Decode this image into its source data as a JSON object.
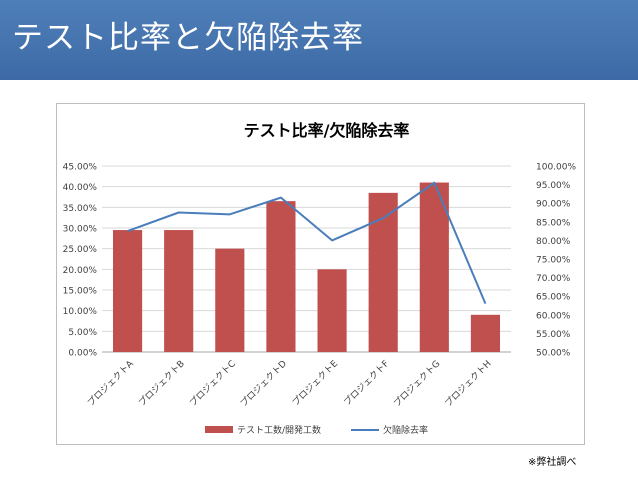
{
  "slide": {
    "title": "テスト比率と欠陥除去率",
    "footnote": "※弊社調べ"
  },
  "colors": {
    "header_bg": "#3d6aa6",
    "bar": "#c0504d",
    "line": "#4a7ebb",
    "grid": "#d9d9d9"
  },
  "chart_data": {
    "type": "bar",
    "title": "テスト比率/欠陥除去率",
    "categories": [
      "プロジェクトA",
      "プロジェクトB",
      "プロジェクトC",
      "プロジェクトD",
      "プロジェクトE",
      "プロジェクトF",
      "プロジェクトG",
      "プロジェクトH"
    ],
    "series": [
      {
        "name": "テスト工数/開発工数",
        "type": "bar",
        "axis": "left",
        "values": [
          29.5,
          29.5,
          25.0,
          36.5,
          20.0,
          38.5,
          41.0,
          9.0
        ]
      },
      {
        "name": "欠陥除去率",
        "type": "line",
        "axis": "right",
        "values": [
          82.5,
          87.5,
          87.0,
          91.5,
          80.0,
          86.0,
          95.5,
          63.0
        ]
      }
    ],
    "left_axis": {
      "min": 0,
      "max": 45,
      "ticks": [
        "0.00%",
        "5.00%",
        "10.00%",
        "15.00%",
        "20.00%",
        "25.00%",
        "30.00%",
        "35.00%",
        "40.00%",
        "45.00%"
      ]
    },
    "right_axis": {
      "min": 50,
      "max": 100,
      "ticks": [
        "50.00%",
        "55.00%",
        "60.00%",
        "65.00%",
        "70.00%",
        "75.00%",
        "80.00%",
        "85.00%",
        "90.00%",
        "95.00%",
        "100.00%"
      ]
    },
    "legend_position": "bottom"
  }
}
